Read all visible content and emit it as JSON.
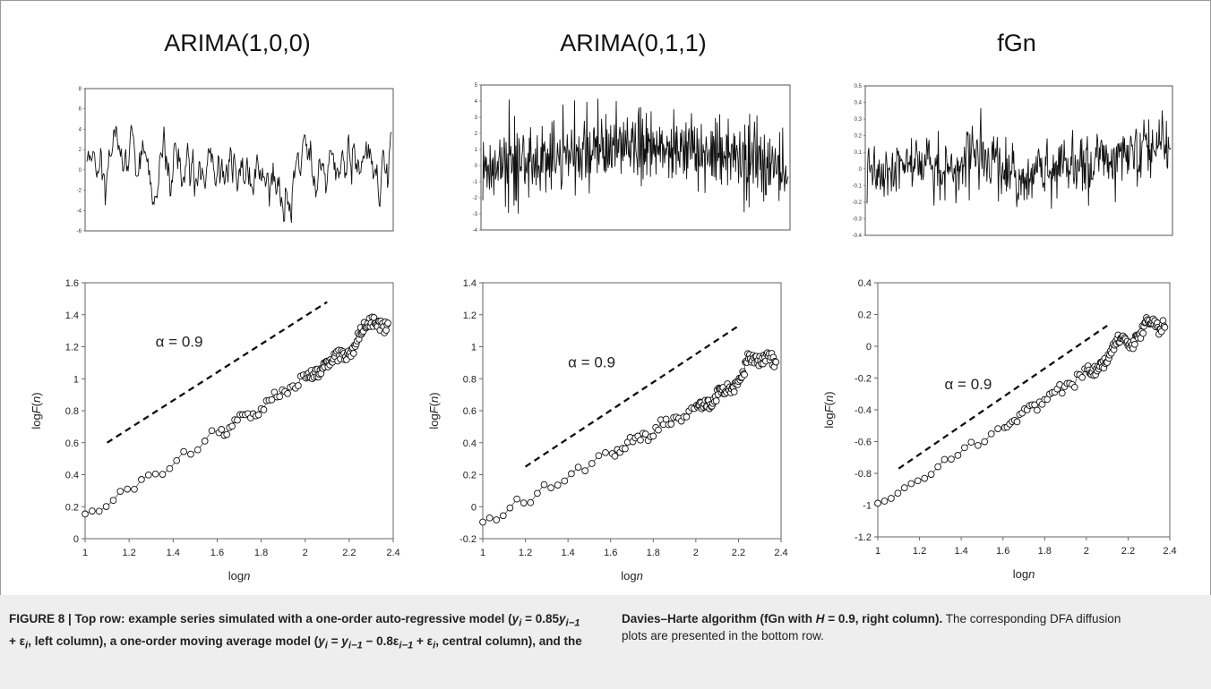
{
  "figure": {
    "caption_label": "FIGURE 8 |",
    "caption_bold_left": "Top row: example series simulated with a one-order auto-regressive model (y",
    "caption_left_html": "<span class=\"b\">FIGURE 8 | Top row: example series simulated with a one-order auto-regressive model (<i>y<sub>i</sub></i> = 0.85<i>y<sub>i−1</sub></i> + ε<sub><i>i</i></sub>, left column), a one-order moving average model (<i>y<sub>i</sub></i> = <i>y<sub>i−1</sub></i> − 0.8ε<sub><i>i−1</i></sub> + ε<sub><i>i</i></sub>, central column), and the</span>",
    "caption_right_html": "<span class=\"b\">Davies–Harte algorithm (fGn with <i>H</i> = 0.9, right column).</span> The corresponding DFA diffusion plots are presented in the bottom row.",
    "caption_left_text": "FIGURE 8 | Top row: example series simulated with a one-order auto-regressive model (yi = 0.85yi−1 + εi, left column), a one-order moving average model (yi = yi−1 − 0.8εi−1 + εi, central column), and the",
    "caption_right_text": "Davies–Harte algorithm (fGn with H = 0.9, right column). The corresponding DFA diffusion plots are presented in the bottom row."
  },
  "chart_data": [
    {
      "id": "series-arima100",
      "type": "line",
      "title": "ARIMA(1,0,0)",
      "ylim": [
        -6,
        8
      ],
      "yticks": [
        "8",
        "6",
        "4",
        "2",
        "0",
        "-2",
        "-4",
        "-6"
      ],
      "seed": 11,
      "model": "ar",
      "n": 400
    },
    {
      "id": "series-arima011",
      "type": "line",
      "title": "ARIMA(0,1,1)",
      "ylim": [
        -4,
        5
      ],
      "yticks": [
        "5",
        "4",
        "3",
        "2",
        "1",
        "0",
        "-1",
        "-2",
        "-3",
        "-4"
      ],
      "seed": 23,
      "model": "ma",
      "n": 500
    },
    {
      "id": "series-fgn",
      "type": "line",
      "title": "fGn",
      "ylim": [
        -0.4,
        0.5
      ],
      "yticks": [
        "0.5",
        "0.4",
        "0.3",
        "0.2",
        "0.1",
        "0",
        "-0.1",
        "-0.2",
        "-0.3",
        "-0.4"
      ],
      "seed": 37,
      "model": "fgn",
      "n": 500
    },
    {
      "id": "dfa-arima100",
      "type": "scatter",
      "xlabel": "logn",
      "ylabel": "logF(n)",
      "xlim": [
        1,
        2.4
      ],
      "ylim": [
        0,
        1.6
      ],
      "xticks": [
        "1",
        "1.2",
        "1.4",
        "1.6",
        "1.8",
        "2",
        "2.2",
        "2.4"
      ],
      "yticks": [
        "0",
        "0.2",
        "0.4",
        "0.6",
        "0.8",
        "1",
        "1.2",
        "1.4",
        "1.6"
      ],
      "annotation": "α = 0.9",
      "annotation_pos": {
        "x": 1.32,
        "y": 1.2
      },
      "reference_line": {
        "x": [
          1.1,
          2.1
        ],
        "y": [
          0.6,
          1.48
        ]
      },
      "points": {
        "x0": 1.0,
        "y0": 0.13,
        "slope": 0.87,
        "end_x": 2.38,
        "bump": [
          [
            2.27,
            0.08
          ],
          [
            2.32,
            0.07
          ]
        ],
        "seed": 5
      }
    },
    {
      "id": "dfa-arima011",
      "type": "scatter",
      "xlabel": "logn",
      "ylabel": "logF(n)",
      "xlim": [
        1,
        2.4
      ],
      "ylim": [
        -0.2,
        1.4
      ],
      "xticks": [
        "1",
        "1.2",
        "1.4",
        "1.6",
        "1.8",
        "2",
        "2.2",
        "2.4"
      ],
      "yticks": [
        "-0.2",
        "0",
        "0.2",
        "0.4",
        "0.6",
        "0.8",
        "1",
        "1.2",
        "1.4"
      ],
      "annotation": "α = 0.9",
      "annotation_pos": {
        "x": 1.4,
        "y": 0.87
      },
      "reference_line": {
        "x": [
          1.2,
          2.2
        ],
        "y": [
          0.25,
          1.13
        ]
      },
      "points": {
        "x0": 1.0,
        "y0": -0.1,
        "slope": 0.72,
        "end_x": 2.38,
        "bump": [
          [
            2.25,
            0.12
          ],
          [
            2.33,
            0.1
          ]
        ],
        "seed": 9
      }
    },
    {
      "id": "dfa-fgn",
      "type": "scatter",
      "xlabel": "logn",
      "ylabel": "logF(n)",
      "xlim": [
        1,
        2.4
      ],
      "ylim": [
        -1.2,
        0.4
      ],
      "xticks": [
        "1",
        "1.2",
        "1.4",
        "1.6",
        "1.8",
        "2",
        "2.2",
        "2.4"
      ],
      "yticks": [
        "-1.2",
        "-1",
        "-0.8",
        "-0.6",
        "-0.4",
        "-0.2",
        "0",
        "0.2",
        "0.4"
      ],
      "annotation": "α = 0.9",
      "annotation_pos": {
        "x": 1.32,
        "y": -0.27
      },
      "reference_line": {
        "x": [
          1.1,
          2.1
        ],
        "y": [
          -0.77,
          0.13
        ]
      },
      "points": {
        "x0": 1.0,
        "y0": -1.0,
        "slope": 0.83,
        "end_x": 2.38,
        "bump": [
          [
            2.17,
            0.1
          ],
          [
            2.3,
            0.08
          ]
        ],
        "seed": 13
      }
    }
  ]
}
